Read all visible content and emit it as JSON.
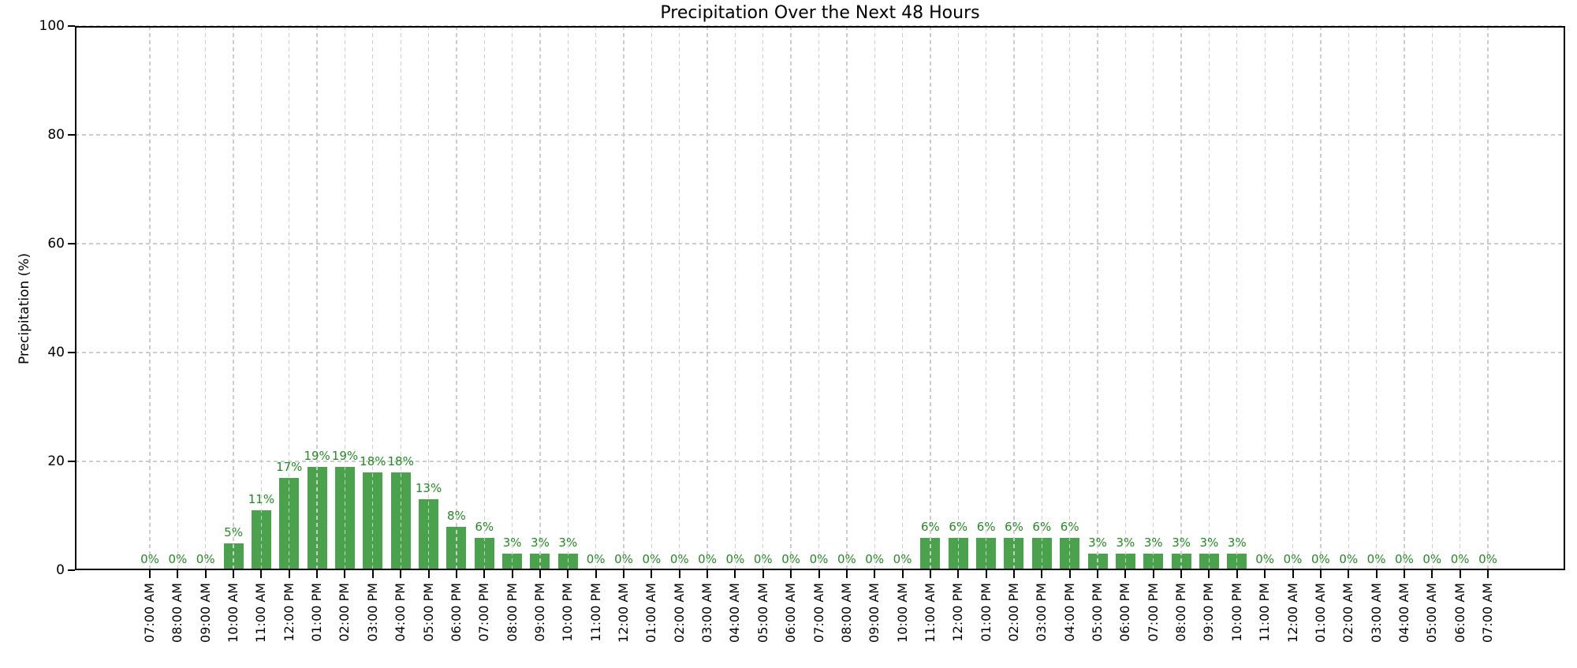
{
  "chart_data": {
    "type": "bar",
    "title": "Precipitation Over the Next 48 Hours",
    "xlabel": "",
    "ylabel": "Precipitation (%)",
    "ylim": [
      0,
      100
    ],
    "yticks": [
      0,
      20,
      40,
      60,
      80,
      100
    ],
    "grid": "dashed vertical line at every hour tick and dashed horizontal line at every y tick, drawn above bars",
    "legend": "none",
    "bar_color": "#4aa24d",
    "bar_label_color": "#228b22",
    "bar_label_format": "{value}%",
    "categories": [
      "07:00 AM",
      "08:00 AM",
      "09:00 AM",
      "10:00 AM",
      "11:00 AM",
      "12:00 PM",
      "01:00 PM",
      "02:00 PM",
      "03:00 PM",
      "04:00 PM",
      "05:00 PM",
      "06:00 PM",
      "07:00 PM",
      "08:00 PM",
      "09:00 PM",
      "10:00 PM",
      "11:00 PM",
      "12:00 AM",
      "01:00 AM",
      "02:00 AM",
      "03:00 AM",
      "04:00 AM",
      "05:00 AM",
      "06:00 AM",
      "07:00 AM",
      "08:00 AM",
      "09:00 AM",
      "10:00 AM",
      "11:00 AM",
      "12:00 PM",
      "01:00 PM",
      "02:00 PM",
      "03:00 PM",
      "04:00 PM",
      "05:00 PM",
      "06:00 PM",
      "07:00 PM",
      "08:00 PM",
      "09:00 PM",
      "10:00 PM",
      "11:00 PM",
      "12:00 AM",
      "01:00 AM",
      "02:00 AM",
      "03:00 AM",
      "04:00 AM",
      "05:00 AM",
      "06:00 AM",
      "07:00 AM"
    ],
    "values": [
      0,
      0,
      0,
      5,
      11,
      17,
      19,
      19,
      18,
      18,
      13,
      8,
      6,
      3,
      3,
      3,
      0,
      0,
      0,
      0,
      0,
      0,
      0,
      0,
      0,
      0,
      0,
      0,
      6,
      6,
      6,
      6,
      6,
      6,
      3,
      3,
      3,
      3,
      3,
      3,
      0,
      0,
      0,
      0,
      0,
      0,
      0,
      0,
      0
    ]
  }
}
